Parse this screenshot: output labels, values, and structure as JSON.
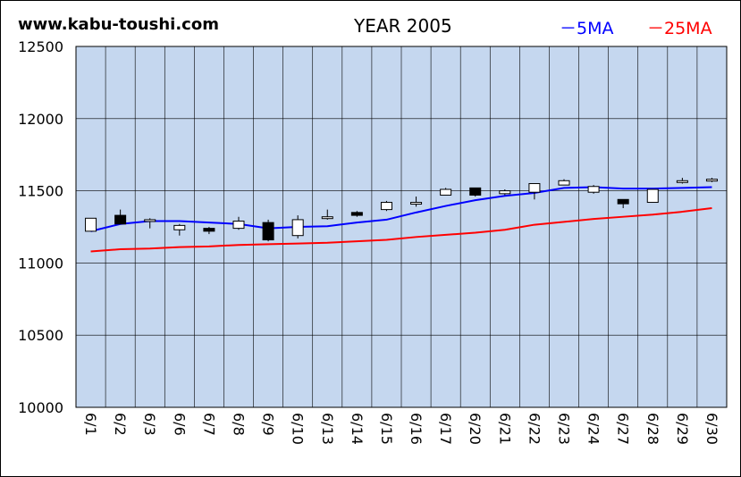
{
  "header": {
    "site": "www.kabu-toushi.com",
    "year_label": "YEAR 2005",
    "legend_5ma": "－5MA",
    "legend_25ma": "－25MA"
  },
  "colors": {
    "plot_bg": "#c5d7ef",
    "grid": "#000000",
    "ma5": "#0000ff",
    "ma25": "#ff0000",
    "candle_up": "#ffffff",
    "candle_down": "#000000"
  },
  "chart_data": {
    "type": "candlestick",
    "title": "YEAR 2005",
    "ylim": [
      10000,
      12500
    ],
    "yticks": [
      10000,
      10500,
      11000,
      11500,
      12000,
      12500
    ],
    "grid": true,
    "legend_position": "top-right",
    "categories": [
      "6/1",
      "6/2",
      "6/3",
      "6/6",
      "6/7",
      "6/8",
      "6/9",
      "6/10",
      "6/13",
      "6/14",
      "6/15",
      "6/16",
      "6/17",
      "6/20",
      "6/21",
      "6/22",
      "6/23",
      "6/24",
      "6/27",
      "6/28",
      "6/29",
      "6/30"
    ],
    "candles": [
      {
        "open": 11220,
        "high": 11310,
        "low": 11220,
        "close": 11310
      },
      {
        "open": 11330,
        "high": 11370,
        "low": 11270,
        "close": 11270
      },
      {
        "open": 11290,
        "high": 11310,
        "low": 11240,
        "close": 11300
      },
      {
        "open": 11230,
        "high": 11270,
        "low": 11190,
        "close": 11260
      },
      {
        "open": 11240,
        "high": 11250,
        "low": 11200,
        "close": 11220
      },
      {
        "open": 11240,
        "high": 11320,
        "low": 11230,
        "close": 11290
      },
      {
        "open": 11280,
        "high": 11300,
        "low": 11150,
        "close": 11160
      },
      {
        "open": 11190,
        "high": 11330,
        "low": 11170,
        "close": 11300
      },
      {
        "open": 11310,
        "high": 11370,
        "low": 11300,
        "close": 11320
      },
      {
        "open": 11350,
        "high": 11360,
        "low": 11320,
        "close": 11330
      },
      {
        "open": 11370,
        "high": 11430,
        "low": 11360,
        "close": 11420
      },
      {
        "open": 11410,
        "high": 11460,
        "low": 11390,
        "close": 11420
      },
      {
        "open": 11470,
        "high": 11520,
        "low": 11470,
        "close": 11510
      },
      {
        "open": 11520,
        "high": 11520,
        "low": 11460,
        "close": 11470
      },
      {
        "open": 11480,
        "high": 11510,
        "low": 11470,
        "close": 11500
      },
      {
        "open": 11490,
        "high": 11550,
        "low": 11440,
        "close": 11550
      },
      {
        "open": 11540,
        "high": 11580,
        "low": 11540,
        "close": 11570
      },
      {
        "open": 11490,
        "high": 11540,
        "low": 11480,
        "close": 11530
      },
      {
        "open": 11440,
        "high": 11440,
        "low": 11380,
        "close": 11410
      },
      {
        "open": 11420,
        "high": 11510,
        "low": 11420,
        "close": 11510
      },
      {
        "open": 11560,
        "high": 11590,
        "low": 11550,
        "close": 11570
      },
      {
        "open": 11570,
        "high": 11590,
        "low": 11560,
        "close": 11580
      }
    ],
    "series": [
      {
        "name": "5MA",
        "values": [
          11220,
          11270,
          11290,
          11290,
          11280,
          11270,
          11240,
          11250,
          11255,
          11280,
          11300,
          11350,
          11395,
          11435,
          11465,
          11485,
          11520,
          11525,
          11515,
          11515,
          11520,
          11525
        ]
      },
      {
        "name": "25MA",
        "values": [
          11080,
          11095,
          11100,
          11110,
          11115,
          11125,
          11130,
          11135,
          11140,
          11150,
          11160,
          11180,
          11195,
          11210,
          11230,
          11265,
          11285,
          11305,
          11320,
          11335,
          11355,
          11380
        ]
      }
    ]
  }
}
